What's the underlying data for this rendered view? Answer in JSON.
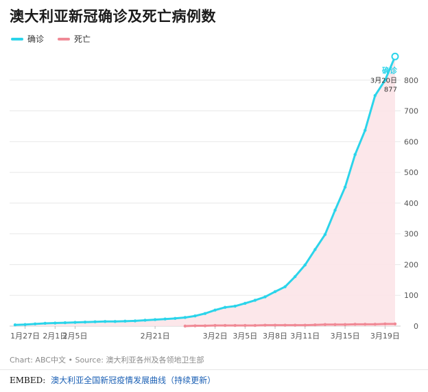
{
  "title": "澳大利亚新冠确诊及死亡病例数",
  "legend": [
    {
      "label": "确诊",
      "color": "#2bd4ea"
    },
    {
      "label": "死亡",
      "color": "#f08a96"
    }
  ],
  "chart_data": {
    "type": "line",
    "title": "澳大利亚新冠确诊及死亡病例数",
    "x": [
      "1/25",
      "1/27",
      "1/29",
      "1/31",
      "2/1",
      "2/3",
      "2/5",
      "2/7",
      "2/9",
      "2/11",
      "2/13",
      "2/15",
      "2/17",
      "2/19",
      "2/21",
      "2/23",
      "2/25",
      "2/27",
      "2/29",
      "3/1",
      "3/2",
      "3/3",
      "3/4",
      "3/5",
      "3/6",
      "3/7",
      "3/8",
      "3/9",
      "3/10",
      "3/11",
      "3/12",
      "3/13",
      "3/14",
      "3/15",
      "3/16",
      "3/17",
      "3/18",
      "3/19",
      "3/20"
    ],
    "x_ticks": [
      "1月27日",
      "2月1日",
      "2月5日",
      "2月21日",
      "3月2日",
      "3月5日",
      "3月8日",
      "3月11日",
      "3月15日",
      "3月19日"
    ],
    "y_ticks": [
      0,
      100,
      200,
      300,
      400,
      500,
      600,
      700,
      800
    ],
    "ylim": [
      0,
      900
    ],
    "series": [
      {
        "name": "确诊",
        "color": "#2bd4ea",
        "values": [
          4,
          5,
          7,
          9,
          10,
          11,
          12,
          13,
          14,
          15,
          15,
          16,
          17,
          19,
          21,
          23,
          25,
          28,
          33,
          41,
          52,
          61,
          65,
          74,
          84,
          95,
          112,
          128,
          161,
          199,
          249,
          298,
          377,
          452,
          558,
          637,
          750,
          800,
          877
        ]
      },
      {
        "name": "死亡",
        "color": "#f08a96",
        "values": [
          null,
          null,
          null,
          null,
          null,
          null,
          null,
          null,
          null,
          null,
          null,
          null,
          null,
          null,
          null,
          null,
          null,
          0,
          1,
          1,
          2,
          2,
          2,
          2,
          2,
          3,
          3,
          3,
          3,
          3,
          4,
          5,
          5,
          5,
          6,
          6,
          6,
          7,
          7
        ]
      }
    ],
    "annotation": {
      "series": "确诊",
      "label": "确诊",
      "date": "3月20日",
      "value": "877"
    },
    "grid": true,
    "y_axis_side": "right",
    "legend_position": "top-left"
  },
  "footer": {
    "source": "Chart: ABC中文 • Source: 澳大利亚各州及各领地卫生部",
    "embed_label": "EMBED:",
    "embed_link": "澳大利亚全国新冠疫情发展曲线（持续更新）"
  }
}
